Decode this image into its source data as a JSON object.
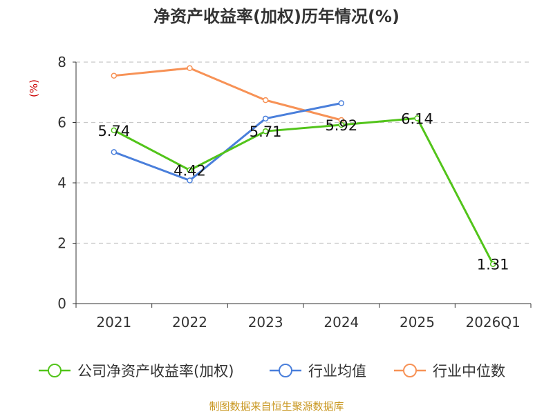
{
  "chart_data": {
    "type": "line",
    "title": "净资产收益率(加权)历年情况(%)",
    "ylabel": "(%)",
    "xlabel": "",
    "categories": [
      "2021",
      "2022",
      "2023",
      "2024",
      "2025",
      "2026Q1"
    ],
    "ylim": [
      0,
      8
    ],
    "yticks": [
      0,
      2,
      4,
      6,
      8
    ],
    "grid": true,
    "legend_position": "bottom",
    "series": [
      {
        "name": "公司净资产收益率(加权)",
        "color": "#52c41a",
        "values": [
          5.74,
          4.42,
          5.71,
          5.92,
          6.14,
          1.31
        ],
        "labels": [
          "5.74",
          "4.42",
          "5.71",
          "5.92",
          "6.14",
          "1.31"
        ]
      },
      {
        "name": "行业均值",
        "color": "#4a7fdb",
        "values": [
          5.02,
          4.08,
          6.13,
          6.64,
          null,
          null
        ]
      },
      {
        "name": "行业中位数",
        "color": "#f79256",
        "values": [
          7.55,
          7.8,
          6.74,
          6.08,
          null,
          null
        ]
      }
    ]
  },
  "source": "制图数据来自恒生聚源数据库"
}
